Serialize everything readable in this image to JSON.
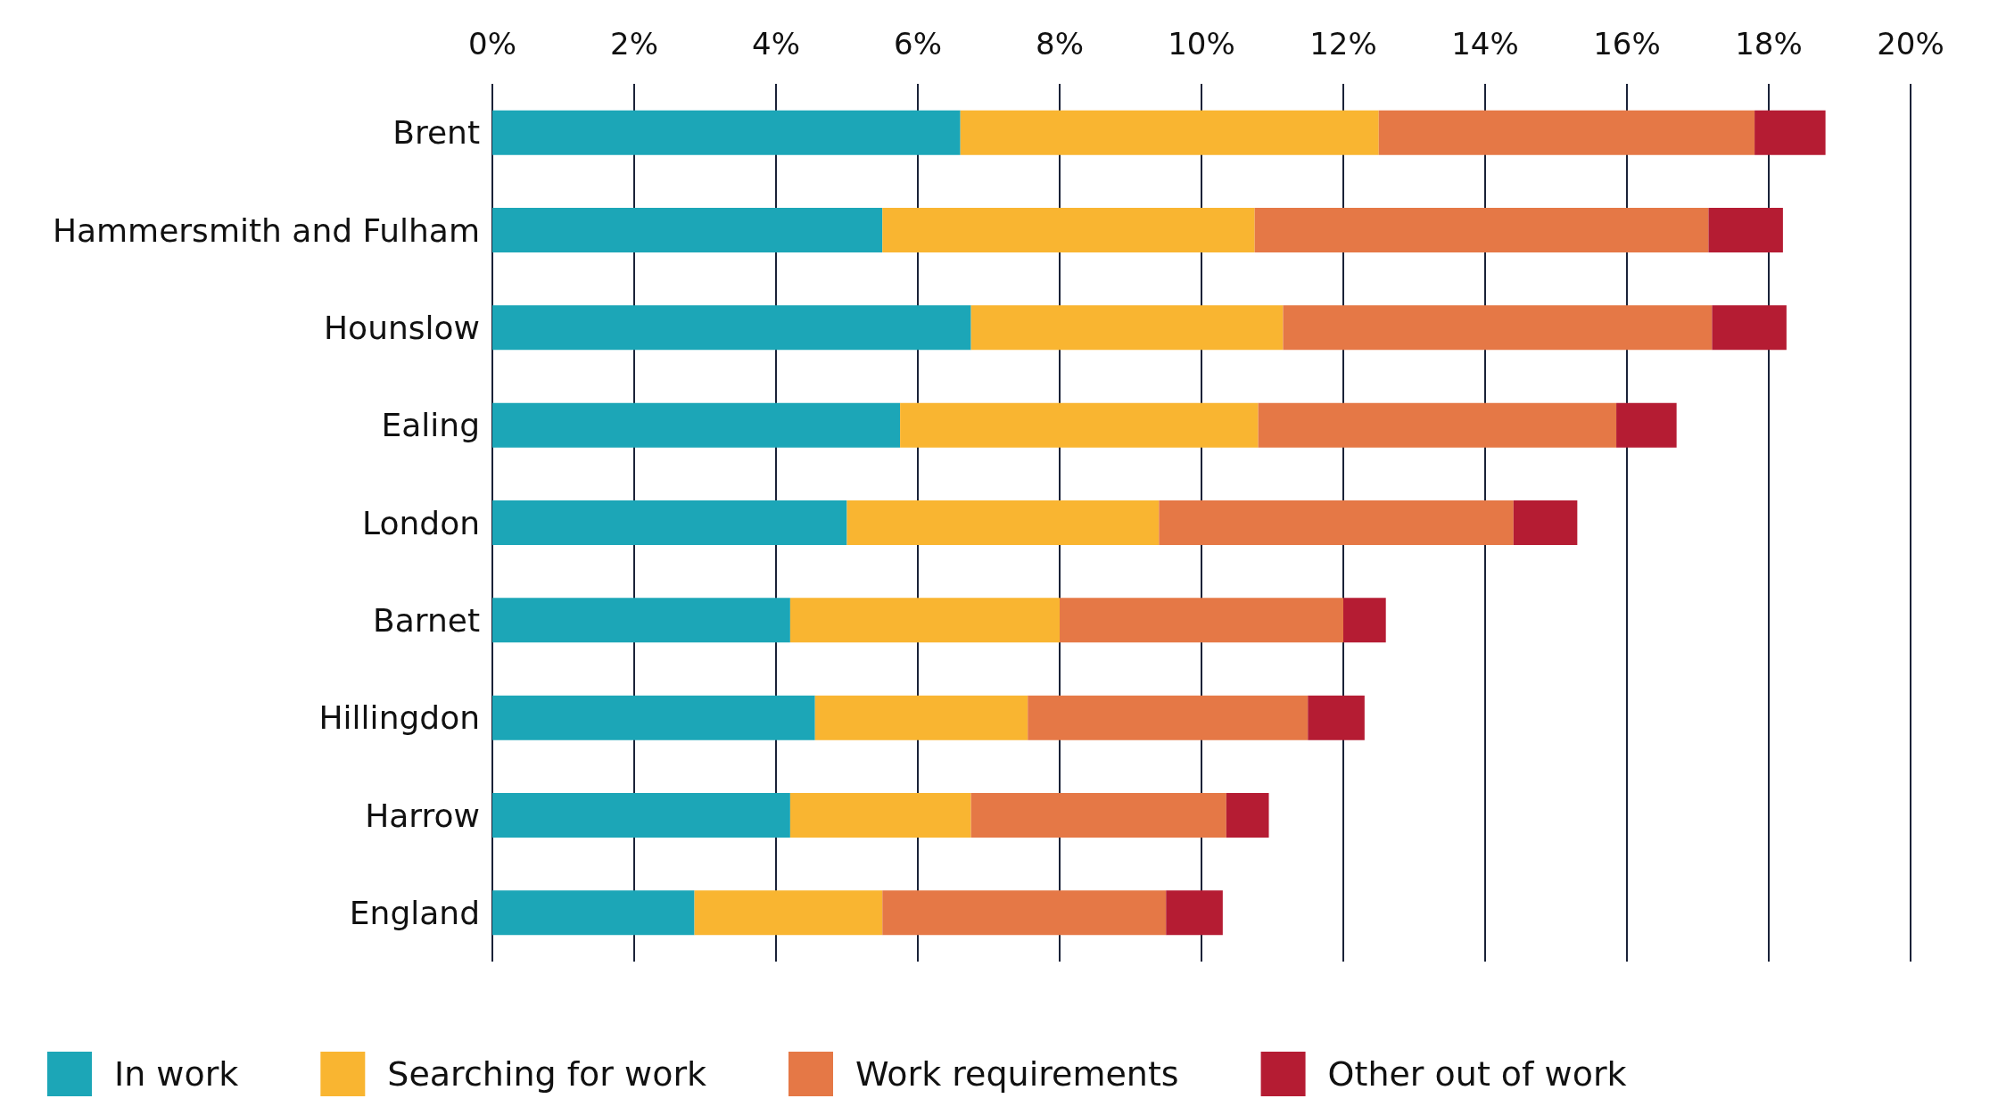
{
  "chart_data": {
    "type": "bar",
    "orientation": "horizontal",
    "stacked": true,
    "categories": [
      "Brent",
      "Hammersmith and Fulham",
      "Hounslow",
      "Ealing",
      "London",
      "Barnet",
      "Hillingdon",
      "Harrow",
      "England"
    ],
    "series": [
      {
        "name": "In work",
        "color": "#1ca6b7",
        "values": [
          6.6,
          5.5,
          6.75,
          5.75,
          5.0,
          4.2,
          4.55,
          4.2,
          2.85
        ]
      },
      {
        "name": "Searching for work",
        "color": "#f9b531",
        "values": [
          5.9,
          5.25,
          4.4,
          5.05,
          4.4,
          3.8,
          3.0,
          2.55,
          2.65
        ]
      },
      {
        "name": "Work requirements",
        "color": "#e57846",
        "values": [
          5.3,
          6.4,
          6.05,
          5.05,
          5.0,
          4.0,
          3.95,
          3.6,
          4.0
        ]
      },
      {
        "name": "Other out of work",
        "color": "#b51c33",
        "values": [
          1.0,
          1.05,
          1.05,
          0.85,
          0.9,
          0.6,
          0.8,
          0.6,
          0.8
        ]
      }
    ],
    "xlim": [
      0,
      20
    ],
    "xticks": [
      {
        "value": 0,
        "label": "0%"
      },
      {
        "value": 2,
        "label": "2%"
      },
      {
        "value": 4,
        "label": "4%"
      },
      {
        "value": 6,
        "label": "6%"
      },
      {
        "value": 8,
        "label": "8%"
      },
      {
        "value": 10,
        "label": "10%"
      },
      {
        "value": 12,
        "label": "12%"
      },
      {
        "value": 14,
        "label": "14%"
      },
      {
        "value": 16,
        "label": "16%"
      },
      {
        "value": 18,
        "label": "18%"
      },
      {
        "value": 20,
        "label": "20%"
      }
    ],
    "grid": "x",
    "legend": "bottom"
  }
}
